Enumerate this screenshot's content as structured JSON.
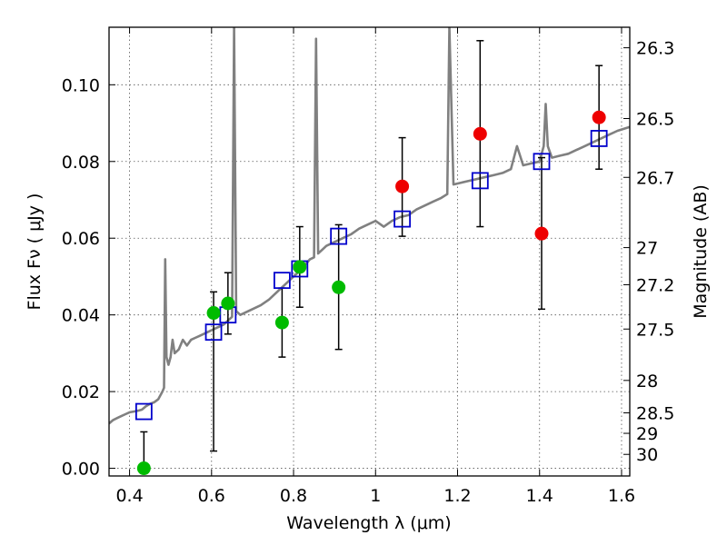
{
  "chart_data": {
    "type": "scatter",
    "xlabel": "Wavelength  λ (μm)",
    "ylabel": "Flux  Fν  ( μJy )",
    "ylabel_right": "Magnitude (AB)",
    "xlim": [
      0.35,
      1.62
    ],
    "ylim": [
      -0.002,
      0.115
    ],
    "grid": true,
    "x_ticks": [
      {
        "value": 0.4,
        "label": "0.4"
      },
      {
        "value": 0.6,
        "label": "0.6"
      },
      {
        "value": 0.8,
        "label": "0.8"
      },
      {
        "value": 1.0,
        "label": "1"
      },
      {
        "value": 1.2,
        "label": "1.2"
      },
      {
        "value": 1.4,
        "label": "1.4"
      },
      {
        "value": 1.6,
        "label": "1.6"
      }
    ],
    "y_ticks": [
      {
        "value": 0.0,
        "label": "0.00"
      },
      {
        "value": 0.02,
        "label": "0.02"
      },
      {
        "value": 0.04,
        "label": "0.04"
      },
      {
        "value": 0.06,
        "label": "0.06"
      },
      {
        "value": 0.08,
        "label": "0.08"
      },
      {
        "value": 0.1,
        "label": "0.10"
      }
    ],
    "mag_ticks": [
      {
        "value": 26.3,
        "label": "26.3"
      },
      {
        "value": 26.5,
        "label": "26.5"
      },
      {
        "value": 26.7,
        "label": "26.7"
      },
      {
        "value": 27.0,
        "label": "27"
      },
      {
        "value": 27.2,
        "label": "27.2"
      },
      {
        "value": 27.5,
        "label": "27.5"
      },
      {
        "value": 28.0,
        "label": "28"
      },
      {
        "value": 28.5,
        "label": "28.5"
      },
      {
        "value": 29.0,
        "label": "29"
      },
      {
        "value": 30.0,
        "label": "30"
      }
    ],
    "colors": {
      "sed": "#808080",
      "model_box": "#0000cc",
      "obs_green": "#00bb00",
      "obs_red": "#ee0000",
      "errorbar": "#000000",
      "grid": "#555555"
    },
    "series": [
      {
        "kind": "sed_line",
        "points": [
          [
            0.35,
            0.0117
          ],
          [
            0.36,
            0.0126
          ],
          [
            0.37,
            0.0131
          ],
          [
            0.38,
            0.0136
          ],
          [
            0.39,
            0.0141
          ],
          [
            0.4,
            0.0146
          ],
          [
            0.41,
            0.0148
          ],
          [
            0.42,
            0.015
          ],
          [
            0.43,
            0.0153
          ],
          [
            0.44,
            0.0162
          ],
          [
            0.45,
            0.0168
          ],
          [
            0.46,
            0.0172
          ],
          [
            0.47,
            0.018
          ],
          [
            0.48,
            0.02
          ],
          [
            0.484,
            0.021
          ],
          [
            0.487,
            0.0545
          ],
          [
            0.49,
            0.029
          ],
          [
            0.495,
            0.027
          ],
          [
            0.5,
            0.029
          ],
          [
            0.505,
            0.0335
          ],
          [
            0.51,
            0.03
          ],
          [
            0.52,
            0.031
          ],
          [
            0.53,
            0.0335
          ],
          [
            0.54,
            0.032
          ],
          [
            0.55,
            0.0335
          ],
          [
            0.56,
            0.034
          ],
          [
            0.57,
            0.0345
          ],
          [
            0.58,
            0.035
          ],
          [
            0.59,
            0.0355
          ],
          [
            0.6,
            0.036
          ],
          [
            0.61,
            0.0365
          ],
          [
            0.62,
            0.037
          ],
          [
            0.63,
            0.0375
          ],
          [
            0.64,
            0.0385
          ],
          [
            0.65,
            0.0395
          ],
          [
            0.655,
            0.115
          ],
          [
            0.66,
            0.041
          ],
          [
            0.67,
            0.04
          ],
          [
            0.68,
            0.0405
          ],
          [
            0.69,
            0.041
          ],
          [
            0.7,
            0.0415
          ],
          [
            0.72,
            0.0425
          ],
          [
            0.74,
            0.044
          ],
          [
            0.76,
            0.046
          ],
          [
            0.78,
            0.048
          ],
          [
            0.8,
            0.05
          ],
          [
            0.82,
            0.052
          ],
          [
            0.84,
            0.0545
          ],
          [
            0.85,
            0.055
          ],
          [
            0.855,
            0.112
          ],
          [
            0.86,
            0.056
          ],
          [
            0.87,
            0.057
          ],
          [
            0.88,
            0.058
          ],
          [
            0.89,
            0.0585
          ],
          [
            0.9,
            0.059
          ],
          [
            0.92,
            0.06
          ],
          [
            0.94,
            0.061
          ],
          [
            0.96,
            0.0625
          ],
          [
            0.98,
            0.0635
          ],
          [
            1.0,
            0.0645
          ],
          [
            1.02,
            0.063
          ],
          [
            1.04,
            0.0645
          ],
          [
            1.06,
            0.0655
          ],
          [
            1.08,
            0.066
          ],
          [
            1.1,
            0.0675
          ],
          [
            1.12,
            0.0685
          ],
          [
            1.14,
            0.0695
          ],
          [
            1.16,
            0.0705
          ],
          [
            1.175,
            0.0715
          ],
          [
            1.18,
            0.115
          ],
          [
            1.19,
            0.074
          ],
          [
            1.21,
            0.0745
          ],
          [
            1.23,
            0.075
          ],
          [
            1.25,
            0.0755
          ],
          [
            1.27,
            0.076
          ],
          [
            1.29,
            0.0765
          ],
          [
            1.31,
            0.077
          ],
          [
            1.33,
            0.078
          ],
          [
            1.345,
            0.084
          ],
          [
            1.36,
            0.079
          ],
          [
            1.38,
            0.0795
          ],
          [
            1.4,
            0.08
          ],
          [
            1.41,
            0.084
          ],
          [
            1.415,
            0.095
          ],
          [
            1.42,
            0.084
          ],
          [
            1.43,
            0.081
          ],
          [
            1.45,
            0.0815
          ],
          [
            1.47,
            0.082
          ],
          [
            1.49,
            0.083
          ],
          [
            1.51,
            0.084
          ],
          [
            1.53,
            0.085
          ],
          [
            1.55,
            0.086
          ],
          [
            1.57,
            0.087
          ],
          [
            1.59,
            0.088
          ],
          [
            1.62,
            0.089
          ]
        ]
      },
      {
        "kind": "model_boxes",
        "points": [
          [
            0.435,
            0.0148
          ],
          [
            0.605,
            0.0355
          ],
          [
            0.64,
            0.04
          ],
          [
            0.772,
            0.049
          ],
          [
            0.815,
            0.052
          ],
          [
            0.91,
            0.0605
          ],
          [
            1.065,
            0.065
          ],
          [
            1.255,
            0.075
          ],
          [
            1.405,
            0.08
          ],
          [
            1.545,
            0.086
          ]
        ]
      },
      {
        "kind": "observed_points",
        "points": [
          {
            "x": 0.435,
            "y": 0.0,
            "err_low": 0.0,
            "err_high": 0.0095,
            "color": "green"
          },
          {
            "x": 0.605,
            "y": 0.0405,
            "err_low": 0.0045,
            "err_high": 0.046,
            "color": "green"
          },
          {
            "x": 0.64,
            "y": 0.043,
            "err_low": 0.035,
            "err_high": 0.051,
            "color": "green"
          },
          {
            "x": 0.772,
            "y": 0.038,
            "err_low": 0.029,
            "err_high": 0.047,
            "color": "green"
          },
          {
            "x": 0.815,
            "y": 0.0525,
            "err_low": 0.042,
            "err_high": 0.063,
            "color": "green"
          },
          {
            "x": 0.91,
            "y": 0.0472,
            "err_low": 0.031,
            "err_high": 0.0635,
            "color": "green"
          },
          {
            "x": 1.065,
            "y": 0.0735,
            "err_low": 0.0605,
            "err_high": 0.0862,
            "color": "red"
          },
          {
            "x": 1.255,
            "y": 0.0872,
            "err_low": 0.063,
            "err_high": 0.1115,
            "color": "red"
          },
          {
            "x": 1.405,
            "y": 0.0612,
            "err_low": 0.0415,
            "err_high": 0.081,
            "color": "red"
          },
          {
            "x": 1.545,
            "y": 0.0915,
            "err_low": 0.078,
            "err_high": 0.105,
            "color": "red"
          }
        ]
      }
    ]
  }
}
